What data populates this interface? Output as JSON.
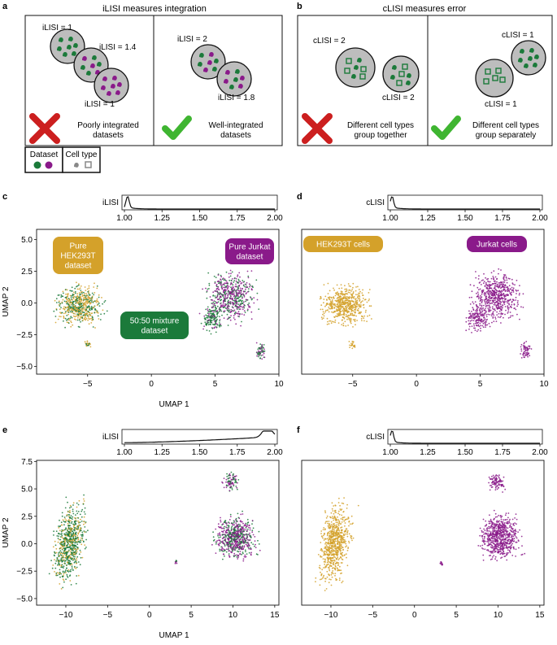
{
  "colors": {
    "green": "#1b7a3a",
    "purple": "#8a1a8a",
    "gold": "#d4a12a",
    "gray": "#bdbdbd",
    "red": "#cc1f1f",
    "check": "#3fb531"
  },
  "panel_a": {
    "letter": "a",
    "title": "iLISI measures integration",
    "left": {
      "labels": [
        "iLISI = 1",
        "iLISI = 1.4",
        "iLISI = 1"
      ],
      "caption": [
        "Poorly integrated",
        "datasets"
      ],
      "mark": "red-x-icon"
    },
    "right": {
      "labels": [
        "iLISI = 2",
        "iLISI = 1.8"
      ],
      "caption": [
        "Well-integrated",
        "datasets"
      ],
      "mark": "check-icon"
    }
  },
  "panel_b": {
    "letter": "b",
    "title": "cLISI measures error",
    "left": {
      "labels": [
        "cLISI = 2",
        "cLISI = 2"
      ],
      "caption": [
        "Different cell types",
        "group together"
      ],
      "mark": "red-x-icon"
    },
    "right": {
      "labels": [
        "cLISI = 1",
        "cLISI = 1"
      ],
      "caption": [
        "Different cell types",
        "group separately"
      ],
      "mark": "check-icon"
    }
  },
  "legend": {
    "dataset_label": "Dataset",
    "celltype_label": "Cell type"
  },
  "chart_data": [
    {
      "panel": "c",
      "type": "scatter",
      "density": {
        "label": "iLISI",
        "ticks": [
          "1.00",
          "1.25",
          "1.50",
          "1.75",
          "2.00"
        ],
        "xlim": [
          1.0,
          2.0
        ],
        "peak": 1.02
      },
      "x_ticks": [
        "−5",
        "0",
        "5",
        "10"
      ],
      "x_tick_vals": [
        -5,
        0,
        5,
        10
      ],
      "y_ticks": [
        "5.0",
        "2.5",
        "0.0",
        "−2.5",
        "−5.0"
      ],
      "y_tick_vals": [
        5,
        2.5,
        0,
        -2.5,
        -5
      ],
      "xlim": [
        -9,
        10
      ],
      "ylim": [
        -5.6,
        5.8
      ],
      "xlabel": "UMAP 1",
      "ylabel": "UMAP 2",
      "annotations": [
        {
          "text": [
            "Pure",
            "HEK293T",
            "dataset"
          ],
          "color": "gold"
        },
        {
          "text": [
            "Pure Jurkat",
            "dataset"
          ],
          "color": "purple"
        },
        {
          "text": [
            "50:50 mixture",
            "dataset"
          ],
          "color": "green"
        }
      ]
    },
    {
      "panel": "d",
      "type": "scatter",
      "density": {
        "label": "cLISI",
        "ticks": [
          "1.00",
          "1.25",
          "1.50",
          "1.75",
          "2.00"
        ],
        "xlim": [
          1.0,
          2.0
        ],
        "peak": 1.01
      },
      "x_ticks": [
        "−5",
        "0",
        "5",
        "10"
      ],
      "x_tick_vals": [
        -5,
        0,
        5,
        10
      ],
      "xlim": [
        -9,
        10
      ],
      "ylim": [
        -5.6,
        5.8
      ],
      "annotations": [
        {
          "text": [
            "HEK293T cells"
          ],
          "color": "gold"
        },
        {
          "text": [
            "Jurkat cells"
          ],
          "color": "purple"
        }
      ]
    },
    {
      "panel": "e",
      "type": "scatter",
      "density": {
        "label": "iLISI",
        "ticks": [
          "1.00",
          "1.25",
          "1.50",
          "1.75",
          "2.00"
        ],
        "xlim": [
          1.0,
          2.0
        ],
        "peak": 1.95
      },
      "x_ticks": [
        "−10",
        "−5",
        "0",
        "5",
        "10",
        "15"
      ],
      "x_tick_vals": [
        -10,
        -5,
        0,
        5,
        10,
        15
      ],
      "y_ticks": [
        "7.5",
        "5.0",
        "2.5",
        "0.0",
        "−2.5",
        "−5.0"
      ],
      "y_tick_vals": [
        7.5,
        5,
        2.5,
        0,
        -2.5,
        -5
      ],
      "xlim": [
        -13.5,
        15.5
      ],
      "ylim": [
        -5.6,
        7.6
      ],
      "xlabel": "UMAP 1",
      "ylabel": "UMAP 2"
    },
    {
      "panel": "f",
      "type": "scatter",
      "density": {
        "label": "cLISI",
        "ticks": [
          "1.00",
          "1.25",
          "1.50",
          "1.75",
          "2.00"
        ],
        "xlim": [
          1.0,
          2.0
        ],
        "peak": 1.01
      },
      "x_ticks": [
        "−10",
        "−5",
        "0",
        "5",
        "10",
        "15"
      ],
      "x_tick_vals": [
        -10,
        -5,
        0,
        5,
        10,
        15
      ],
      "xlim": [
        -13.5,
        15.5
      ],
      "ylim": [
        -5.6,
        7.6
      ]
    }
  ]
}
